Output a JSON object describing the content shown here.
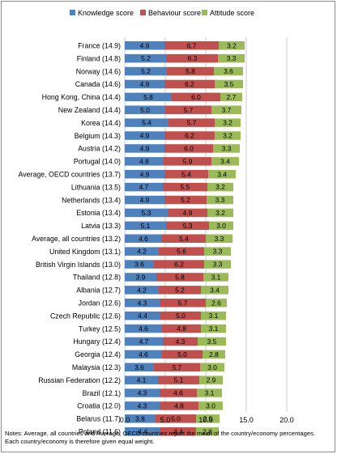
{
  "chart_data": {
    "type": "bar",
    "stacked": true,
    "orientation": "horizontal",
    "categories": [
      "France (14.9)",
      "Finland (14.8)",
      "Norway (14.6)",
      "Canada (14.6)",
      "Hong Kong, China (14.4)",
      "New Zealand (14.4)",
      "Korea (14.4)",
      "Belgium (14.3)",
      "Austria (14.2)",
      "Portugal (14.0)",
      "Average, OECD countries (13.7)",
      "Lithuania (13.5)",
      "Netherlands (13.4)",
      "Estonia (13.4)",
      "Latvia (13.3)",
      "Average, all countries (13.2)",
      "United Kingdom (13.1)",
      "British Virgin Islands (13.0)",
      "Thailand (12.8)",
      "Albania (12.7)",
      "Jordan (12.6)",
      "Czech Republic (12.6)",
      "Turkey (12.5)",
      "Hungary (12.4)",
      "Georgia (12.4)",
      "Malaysia (12.3)",
      "Russian Federation (12.2)",
      "Brazil (12.1)",
      "Croatia (12.0)",
      "Belarus (11.7)",
      "Poland (11.6)"
    ],
    "series": [
      {
        "name": "Knowledge score",
        "color": "#4f81bd",
        "values": [
          4.9,
          5.2,
          5.2,
          4.9,
          5.8,
          5.0,
          5.4,
          4.9,
          4.9,
          4.8,
          4.9,
          4.7,
          4.9,
          5.3,
          5.1,
          4.6,
          4.2,
          3.6,
          3.9,
          4.2,
          4.3,
          4.4,
          4.6,
          4.7,
          4.6,
          3.6,
          4.1,
          4.3,
          4.3,
          3.8,
          4.4
        ]
      },
      {
        "name": "Behaviour score",
        "color": "#c0504d",
        "values": [
          6.7,
          6.3,
          5.8,
          6.2,
          6.0,
          5.7,
          5.7,
          6.2,
          6.0,
          5.9,
          5.4,
          5.5,
          5.2,
          4.9,
          5.3,
          5.4,
          5.6,
          6.2,
          5.8,
          5.2,
          5.7,
          5.0,
          4.8,
          4.3,
          5.0,
          5.7,
          5.1,
          4.6,
          4.8,
          5.0,
          4.4
        ]
      },
      {
        "name": "Attitude score",
        "color": "#9bbb59",
        "values": [
          3.2,
          3.3,
          3.6,
          3.5,
          2.7,
          3.7,
          3.2,
          3.2,
          3.3,
          3.4,
          3.4,
          3.2,
          3.3,
          3.2,
          3.0,
          3.3,
          3.3,
          3.3,
          3.1,
          3.4,
          2.6,
          3.1,
          3.1,
          3.5,
          2.8,
          3.0,
          2.9,
          3.1,
          3.0,
          2.9,
          2.8
        ]
      }
    ],
    "xlim": [
      0,
      20
    ],
    "x_ticks": [
      "0.0",
      "5.0",
      "10.0",
      "15.0",
      "20.0"
    ],
    "grid": "vertical",
    "legend_position": "top"
  },
  "notes": [
    "Notes: Average, all countries and Average, OECD countries report the mean of the country/economy percentages.",
    "Each country/economy is therefore given equal weight."
  ]
}
